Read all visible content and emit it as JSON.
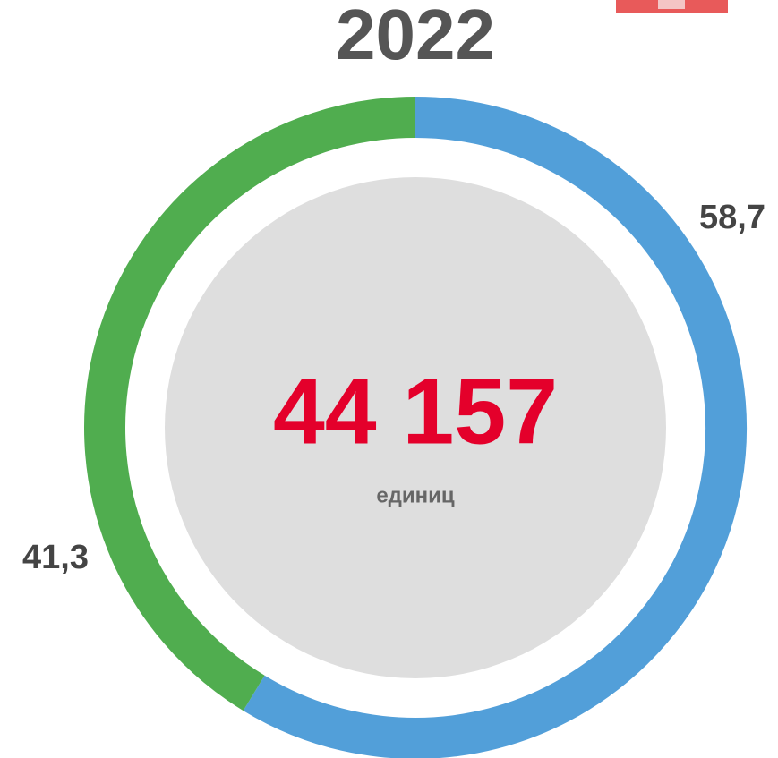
{
  "chart_data": {
    "type": "donut",
    "title": "2022",
    "categories": [
      null,
      null
    ],
    "series": [
      {
        "name": null,
        "values": [
          58.7,
          41.3
        ],
        "value_labels": [
          "58,7",
          "41,3"
        ],
        "colors": [
          "#529fd9",
          "#50ad4f"
        ]
      }
    ],
    "total": {
      "value": 44157,
      "label": "44 157"
    },
    "total_unit": "единиц"
  }
}
